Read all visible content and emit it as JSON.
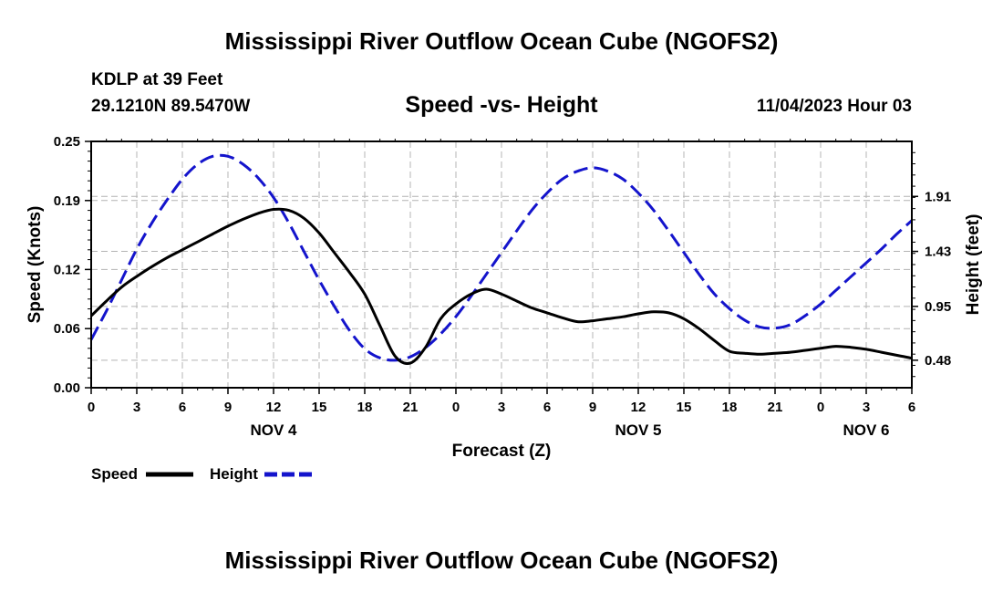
{
  "header": {
    "title": "Mississippi River Outflow Ocean Cube (NGOFS2)",
    "station": "KDLP at 39 Feet",
    "coordinates": "29.1210N  89.5470W",
    "subtitle": "Speed -vs- Height",
    "datetime": "11/04/2023 Hour 03"
  },
  "legend": {
    "speed_label": "Speed",
    "height_label": "Height"
  },
  "footer": {
    "title": "Mississippi River Outflow Ocean Cube (NGOFS2)"
  },
  "colors": {
    "speed": "#000000",
    "height": "#1414cc",
    "grid": "#b4b4b4"
  },
  "chart_data": {
    "type": "line",
    "title": "Speed -vs- Height",
    "xlabel": "Forecast (Z)",
    "ylabel": "Speed (Knots)",
    "y2label": "Height (feet)",
    "x_range_hours": [
      0,
      54
    ],
    "x_tick_labels": [
      "0",
      "3",
      "6",
      "9",
      "12",
      "15",
      "18",
      "21",
      "0",
      "3",
      "6",
      "9",
      "12",
      "15",
      "18",
      "21",
      "0",
      "3",
      "6"
    ],
    "day_labels": [
      {
        "label": "NOV 4",
        "hour": 12
      },
      {
        "label": "NOV 5",
        "hour": 36
      },
      {
        "label": "NOV 6",
        "hour": 51
      }
    ],
    "ylim": [
      0,
      0.25
    ],
    "y_ticks": [
      0.0,
      0.06,
      0.12,
      0.19,
      0.25
    ],
    "y_tick_labels": [
      "0.00",
      "0.06",
      "0.12",
      "0.19",
      "0.25"
    ],
    "y2lim": [
      0.24,
      2.39
    ],
    "y2_ticks": [
      0.48,
      0.95,
      1.43,
      1.91
    ],
    "y2_tick_labels": [
      "0.48",
      "0.95",
      "1.43",
      "1.91"
    ],
    "grid": true,
    "series": [
      {
        "name": "Speed",
        "axis": "left",
        "style": "solid",
        "x": [
          0,
          1,
          2,
          3,
          4,
          5,
          6,
          7,
          8,
          9,
          10,
          11,
          12,
          13,
          14,
          15,
          16,
          17,
          18,
          19,
          20,
          21,
          22,
          23,
          24,
          25,
          26,
          27,
          28,
          29,
          30,
          31,
          32,
          33,
          34,
          35,
          36,
          37,
          38,
          39,
          40,
          41,
          42,
          43,
          44,
          45,
          46,
          47,
          48,
          49,
          50,
          51,
          52,
          53,
          54
        ],
        "values": [
          0.073,
          0.088,
          0.102,
          0.113,
          0.123,
          0.132,
          0.14,
          0.148,
          0.156,
          0.164,
          0.171,
          0.177,
          0.181,
          0.18,
          0.172,
          0.157,
          0.137,
          0.117,
          0.095,
          0.063,
          0.032,
          0.025,
          0.041,
          0.07,
          0.085,
          0.095,
          0.1,
          0.095,
          0.088,
          0.081,
          0.076,
          0.071,
          0.067,
          0.068,
          0.07,
          0.072,
          0.075,
          0.077,
          0.076,
          0.07,
          0.06,
          0.048,
          0.037,
          0.035,
          0.034,
          0.035,
          0.036,
          0.038,
          0.04,
          0.042,
          0.041,
          0.039,
          0.036,
          0.033,
          0.03
        ]
      },
      {
        "name": "Height",
        "axis": "right",
        "style": "dashed",
        "x": [
          0,
          1,
          2,
          3,
          4,
          5,
          6,
          7,
          8,
          9,
          10,
          11,
          12,
          13,
          14,
          15,
          16,
          17,
          18,
          19,
          20,
          21,
          22,
          23,
          24,
          25,
          26,
          27,
          28,
          29,
          30,
          31,
          32,
          33,
          34,
          35,
          36,
          37,
          38,
          39,
          40,
          41,
          42,
          43,
          44,
          45,
          46,
          47,
          48,
          49,
          50,
          51,
          52,
          53,
          54
        ],
        "values": [
          0.66,
          0.91,
          1.18,
          1.45,
          1.68,
          1.88,
          2.06,
          2.19,
          2.26,
          2.26,
          2.19,
          2.07,
          1.9,
          1.68,
          1.43,
          1.18,
          0.95,
          0.74,
          0.58,
          0.5,
          0.48,
          0.51,
          0.59,
          0.71,
          0.86,
          1.04,
          1.23,
          1.42,
          1.61,
          1.79,
          1.94,
          2.06,
          2.13,
          2.16,
          2.13,
          2.06,
          1.94,
          1.79,
          1.61,
          1.42,
          1.23,
          1.06,
          0.93,
          0.83,
          0.77,
          0.76,
          0.79,
          0.87,
          0.97,
          1.09,
          1.21,
          1.33,
          1.45,
          1.58,
          1.7
        ]
      }
    ]
  }
}
